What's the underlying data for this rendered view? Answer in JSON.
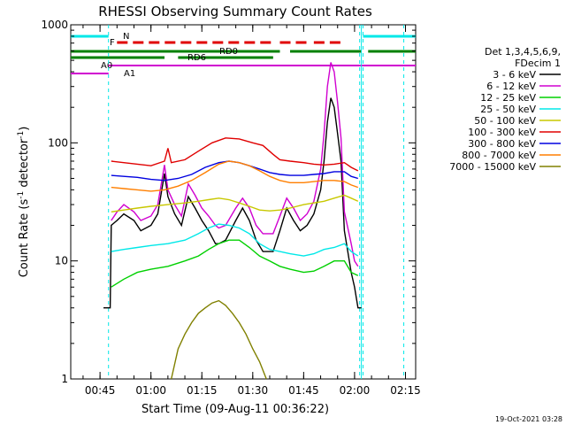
{
  "chart_data": {
    "type": "line",
    "title": "RHESSI Observing Summary Count Rates",
    "xlabel": "Start Time (09-Aug-11 00:36:22)",
    "ylabel_main": "Count Rate (s",
    "ylabel_sup1": "-1",
    "ylabel_mid": " detector",
    "ylabel_sup2": "-1",
    "ylabel_end": ")",
    "yscale": "log",
    "ylim": [
      1,
      1000
    ],
    "xlim_minutes": [
      36.37,
      138
    ],
    "x_tick_labels": [
      "00:45",
      "01:00",
      "01:15",
      "01:30",
      "01:45",
      "02:00",
      "02:15"
    ],
    "x_tick_minutes": [
      45,
      60,
      75,
      90,
      105,
      120,
      135
    ],
    "y_tick_labels": [
      "1",
      "10",
      "100",
      "1000"
    ],
    "y_tick_values": [
      1,
      10,
      100,
      1000
    ],
    "timestamp": "19-Oct-2021 03:28",
    "legend_header": [
      "Det 1,3,4,5,6,9,",
      "FDecim 1"
    ],
    "series": [
      {
        "name": "3 - 6 keV",
        "color": "#000000",
        "points": [
          [
            46,
            4
          ],
          [
            48,
            4
          ],
          [
            48.3,
            20
          ],
          [
            50,
            22
          ],
          [
            52,
            25
          ],
          [
            55,
            22
          ],
          [
            57,
            18
          ],
          [
            60,
            20
          ],
          [
            62,
            25
          ],
          [
            64,
            55
          ],
          [
            65,
            35
          ],
          [
            67,
            25
          ],
          [
            69,
            20
          ],
          [
            71,
            35
          ],
          [
            73,
            28
          ],
          [
            75,
            22
          ],
          [
            77,
            18
          ],
          [
            79,
            14
          ],
          [
            80,
            14
          ],
          [
            82,
            15
          ],
          [
            85,
            22
          ],
          [
            87,
            28
          ],
          [
            89,
            22
          ],
          [
            91,
            15
          ],
          [
            93,
            12
          ],
          [
            96,
            12
          ],
          [
            98,
            18
          ],
          [
            100,
            28
          ],
          [
            102,
            22
          ],
          [
            104,
            18
          ],
          [
            106,
            20
          ],
          [
            108,
            25
          ],
          [
            110,
            40
          ],
          [
            111,
            70
          ],
          [
            112,
            150
          ],
          [
            113,
            240
          ],
          [
            114,
            200
          ],
          [
            115,
            120
          ],
          [
            116,
            70
          ],
          [
            117,
            18
          ],
          [
            119,
            8
          ],
          [
            120,
            6
          ],
          [
            121,
            4
          ],
          [
            122,
            4
          ]
        ]
      },
      {
        "name": "6 - 12 keV",
        "color": "#d000d0",
        "points": [
          [
            48.3,
            22
          ],
          [
            50,
            26
          ],
          [
            52,
            30
          ],
          [
            55,
            26
          ],
          [
            57,
            22
          ],
          [
            60,
            24
          ],
          [
            62,
            30
          ],
          [
            64,
            65
          ],
          [
            65,
            40
          ],
          [
            67,
            30
          ],
          [
            69,
            24
          ],
          [
            71,
            45
          ],
          [
            73,
            36
          ],
          [
            75,
            28
          ],
          [
            77,
            24
          ],
          [
            79,
            20
          ],
          [
            80,
            19
          ],
          [
            82,
            20
          ],
          [
            85,
            28
          ],
          [
            87,
            34
          ],
          [
            89,
            28
          ],
          [
            91,
            20
          ],
          [
            93,
            17
          ],
          [
            96,
            17
          ],
          [
            98,
            24
          ],
          [
            100,
            34
          ],
          [
            102,
            28
          ],
          [
            104,
            22
          ],
          [
            106,
            25
          ],
          [
            108,
            32
          ],
          [
            110,
            60
          ],
          [
            111,
            120
          ],
          [
            112,
            300
          ],
          [
            113,
            480
          ],
          [
            114,
            400
          ],
          [
            115,
            220
          ],
          [
            116,
            110
          ],
          [
            117,
            26
          ],
          [
            119,
            14
          ],
          [
            120,
            10
          ],
          [
            121,
            9
          ]
        ]
      },
      {
        "name": "12 - 25 keV",
        "color": "#00d000",
        "points": [
          [
            48.3,
            6
          ],
          [
            52,
            7
          ],
          [
            56,
            8
          ],
          [
            60,
            8.5
          ],
          [
            65,
            9
          ],
          [
            70,
            10
          ],
          [
            74,
            11
          ],
          [
            77,
            12.5
          ],
          [
            80,
            14
          ],
          [
            83,
            15
          ],
          [
            86,
            15
          ],
          [
            89,
            13
          ],
          [
            92,
            11
          ],
          [
            95,
            10
          ],
          [
            98,
            9
          ],
          [
            101,
            8.5
          ],
          [
            105,
            8
          ],
          [
            108,
            8.2
          ],
          [
            111,
            9
          ],
          [
            114,
            10
          ],
          [
            117,
            10
          ],
          [
            119,
            8
          ],
          [
            121,
            7.5
          ]
        ]
      },
      {
        "name": "25 - 50 keV",
        "color": "#00e8e8",
        "points": [
          [
            48.3,
            12
          ],
          [
            52,
            12.5
          ],
          [
            56,
            13
          ],
          [
            60,
            13.5
          ],
          [
            65,
            14
          ],
          [
            70,
            15
          ],
          [
            74,
            17
          ],
          [
            77,
            19
          ],
          [
            80,
            20.5
          ],
          [
            83,
            20
          ],
          [
            86,
            19
          ],
          [
            89,
            17
          ],
          [
            92,
            14
          ],
          [
            95,
            12.5
          ],
          [
            98,
            12
          ],
          [
            101,
            11.5
          ],
          [
            105,
            11
          ],
          [
            108,
            11.5
          ],
          [
            111,
            12.5
          ],
          [
            114,
            13
          ],
          [
            117,
            14
          ],
          [
            119,
            12
          ],
          [
            121,
            11
          ]
        ]
      },
      {
        "name": "50 - 100 keV",
        "color": "#c8c800",
        "points": [
          [
            48.3,
            26
          ],
          [
            52,
            27
          ],
          [
            56,
            28
          ],
          [
            60,
            29
          ],
          [
            65,
            30
          ],
          [
            70,
            31
          ],
          [
            74,
            32
          ],
          [
            77,
            33
          ],
          [
            80,
            34
          ],
          [
            83,
            33
          ],
          [
            86,
            31
          ],
          [
            89,
            29
          ],
          [
            92,
            27
          ],
          [
            95,
            26.5
          ],
          [
            98,
            27
          ],
          [
            101,
            28
          ],
          [
            105,
            30
          ],
          [
            108,
            31
          ],
          [
            111,
            32
          ],
          [
            114,
            34
          ],
          [
            117,
            36
          ],
          [
            119,
            34
          ],
          [
            121,
            32
          ]
        ]
      },
      {
        "name": "100 - 300 keV",
        "color": "#e00000",
        "points": [
          [
            48.3,
            70
          ],
          [
            52,
            68
          ],
          [
            56,
            66
          ],
          [
            60,
            64
          ],
          [
            64,
            70
          ],
          [
            65,
            90
          ],
          [
            66,
            68
          ],
          [
            70,
            72
          ],
          [
            74,
            85
          ],
          [
            78,
            100
          ],
          [
            82,
            110
          ],
          [
            86,
            108
          ],
          [
            90,
            100
          ],
          [
            93,
            95
          ],
          [
            96,
            80
          ],
          [
            98,
            72
          ],
          [
            101,
            70
          ],
          [
            105,
            68
          ],
          [
            108,
            66
          ],
          [
            111,
            65
          ],
          [
            114,
            66
          ],
          [
            117,
            68
          ],
          [
            119,
            62
          ],
          [
            121,
            58
          ]
        ]
      },
      {
        "name": "300 - 800 keV",
        "color": "#0000e0",
        "points": [
          [
            48.3,
            53
          ],
          [
            52,
            52
          ],
          [
            56,
            51
          ],
          [
            60,
            49
          ],
          [
            64,
            48
          ],
          [
            68,
            50
          ],
          [
            72,
            54
          ],
          [
            76,
            62
          ],
          [
            80,
            68
          ],
          [
            83,
            70
          ],
          [
            86,
            68
          ],
          [
            89,
            64
          ],
          [
            92,
            60
          ],
          [
            95,
            56
          ],
          [
            98,
            54
          ],
          [
            101,
            53
          ],
          [
            105,
            53
          ],
          [
            108,
            54
          ],
          [
            111,
            55
          ],
          [
            114,
            57
          ],
          [
            117,
            57
          ],
          [
            119,
            52
          ],
          [
            121,
            50
          ]
        ]
      },
      {
        "name": "800 - 7000 keV",
        "color": "#ff7f00",
        "points": [
          [
            48.3,
            42
          ],
          [
            52,
            41
          ],
          [
            56,
            40
          ],
          [
            60,
            39
          ],
          [
            64,
            40
          ],
          [
            68,
            43
          ],
          [
            72,
            48
          ],
          [
            76,
            56
          ],
          [
            80,
            66
          ],
          [
            83,
            70
          ],
          [
            86,
            68
          ],
          [
            89,
            64
          ],
          [
            92,
            58
          ],
          [
            95,
            52
          ],
          [
            98,
            48
          ],
          [
            101,
            46
          ],
          [
            105,
            46
          ],
          [
            108,
            47
          ],
          [
            111,
            48
          ],
          [
            114,
            48
          ],
          [
            117,
            47
          ],
          [
            119,
            44
          ],
          [
            121,
            42
          ]
        ]
      },
      {
        "name": "7000 - 15000 keV",
        "color": "#808000",
        "points": [
          [
            66,
            1
          ],
          [
            68,
            1.8
          ],
          [
            70,
            2.4
          ],
          [
            72,
            3
          ],
          [
            74,
            3.6
          ],
          [
            76,
            4
          ],
          [
            78,
            4.4
          ],
          [
            80,
            4.6
          ],
          [
            82,
            4.2
          ],
          [
            84,
            3.6
          ],
          [
            86,
            3
          ],
          [
            88,
            2.4
          ],
          [
            90,
            1.8
          ],
          [
            92,
            1.4
          ],
          [
            94,
            1
          ]
        ]
      }
    ],
    "flags": {
      "N": {
        "label": "N",
        "color": "#00e8e8"
      },
      "F": {
        "label": "F",
        "color": "#e00000"
      },
      "RD0": {
        "label": "RD0",
        "color": "#008000"
      },
      "RD6": {
        "label": "RD6",
        "color": "#008000"
      },
      "A0": {
        "label": "A0",
        "color": "#d000d0"
      },
      "A1": {
        "label": "A1",
        "color": "#d000d0"
      }
    }
  }
}
